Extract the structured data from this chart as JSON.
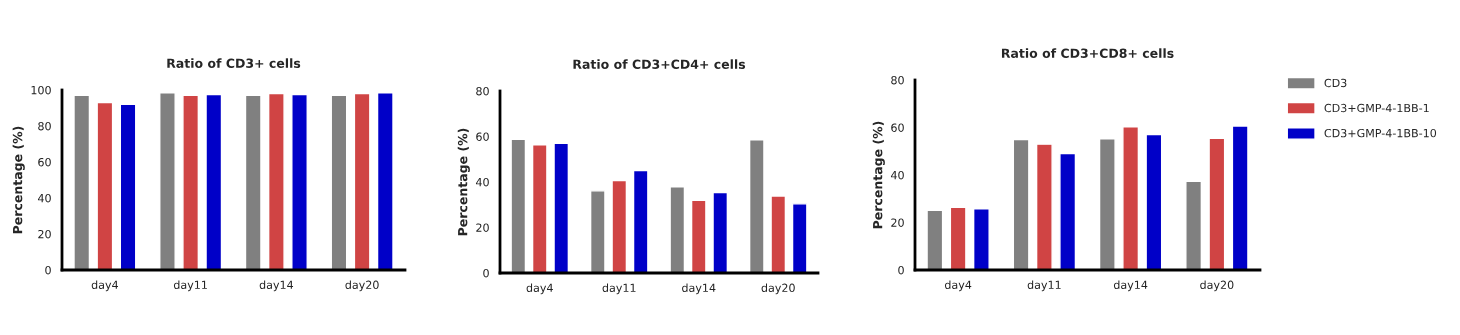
{
  "chart_data": [
    {
      "type": "bar",
      "title": "Ratio of CD3+ cells",
      "ylabel": "Percentage (%)",
      "categories": [
        "day4",
        "day11",
        "day14",
        "day20"
      ],
      "ylim": [
        0,
        100
      ],
      "yticks": [
        0,
        20,
        40,
        60,
        80,
        100
      ],
      "grid": false,
      "legend": false,
      "series": [
        {
          "color": "#808080",
          "values": [
            97,
            98.5,
            97,
            97
          ]
        },
        {
          "color": "#d04444",
          "values": [
            93,
            97,
            98,
            98
          ]
        },
        {
          "color": "#0000c8",
          "values": [
            92,
            97.5,
            97.5,
            98.5
          ]
        }
      ]
    },
    {
      "type": "bar",
      "title": "Ratio of CD3+CD4+ cells",
      "ylabel": "Percentage (%)",
      "categories": [
        "day4",
        "day11",
        "day14",
        "day20"
      ],
      "ylim": [
        0,
        80
      ],
      "yticks": [
        0,
        20,
        40,
        60,
        80
      ],
      "grid": false,
      "legend": false,
      "series": [
        {
          "color": "#808080",
          "values": [
            58.8,
            36.1,
            37.9,
            58.6
          ]
        },
        {
          "color": "#d04444",
          "values": [
            56.3,
            40.6,
            32.0,
            33.8
          ]
        },
        {
          "color": "#0000c8",
          "values": [
            57.0,
            45.0,
            35.4,
            30.4
          ]
        }
      ]
    },
    {
      "type": "bar",
      "title": "Ratio of CD3+CD8+ cells",
      "ylabel": "Percentage (%)",
      "categories": [
        "day4",
        "day11",
        "day14",
        "day20"
      ],
      "ylim": [
        0,
        80
      ],
      "yticks": [
        0,
        20,
        40,
        60,
        80
      ],
      "grid": false,
      "legend": "right",
      "series": [
        {
          "name": "CD3",
          "color": "#808080",
          "values": [
            25.1,
            54.9,
            55.2,
            37.3
          ]
        },
        {
          "name": "CD3+GMP-4-1BB-1",
          "color": "#d04444",
          "values": [
            26.4,
            53.0,
            60.3,
            55.5
          ]
        },
        {
          "name": "CD3+GMP-4-1BB-10",
          "color": "#0000c8",
          "values": [
            25.8,
            49.0,
            57.0,
            60.6
          ]
        }
      ]
    }
  ]
}
